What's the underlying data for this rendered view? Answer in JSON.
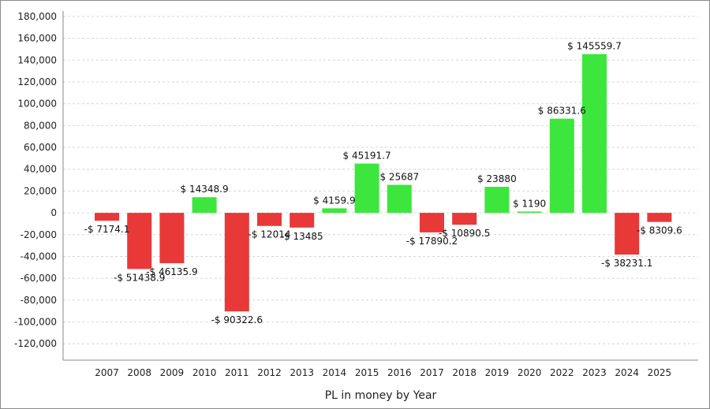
{
  "chart_data": {
    "type": "bar",
    "title": "",
    "xlabel": "PL in money by Year",
    "ylabel": "",
    "ylim": [
      -135000,
      185000
    ],
    "y_ticks": [
      180000,
      160000,
      140000,
      120000,
      100000,
      80000,
      60000,
      40000,
      20000,
      0,
      -20000,
      -40000,
      -60000,
      -80000,
      -100000,
      -120000
    ],
    "y_tick_labels": [
      "180,000",
      "160,000",
      "140,000",
      "120,000",
      "100,000",
      "80,000",
      "60,000",
      "40,000",
      "20,000",
      "0",
      "-20,000",
      "-40,000",
      "-60,000",
      "-80,000",
      "-100,000",
      "-120,000"
    ],
    "grid": true,
    "legend": "none",
    "categories": [
      "2007",
      "2008",
      "2009",
      "2010",
      "2011",
      "2012",
      "2013",
      "2014",
      "2015",
      "2016",
      "2017",
      "2018",
      "2019",
      "2020",
      "2022",
      "2023",
      "2024",
      "2025"
    ],
    "values": [
      -7174.1,
      -51438.9,
      -46135.9,
      14348.9,
      -90322.6,
      -12014,
      -13485,
      4159.9,
      45191.7,
      25687,
      -17890.2,
      -10890.5,
      23880,
      1190,
      86331.6,
      145559.7,
      -38231.1,
      -8309.6
    ],
    "data_labels": [
      "-$ 7174.1",
      "-$ 51438.9",
      "-$ 46135.9",
      "$ 14348.9",
      "-$ 90322.6",
      "-$ 12014",
      "-$ 13485",
      "$ 4159.9",
      "$ 45191.7",
      "$ 25687",
      "-$ 17890.2",
      "-$ 10890.5",
      "$ 23880",
      "$ 1190",
      "$ 86331.6",
      "$ 145559.7",
      "-$ 38231.1",
      "-$ 8309.6"
    ],
    "colors": {
      "positive": "#3de63d",
      "negative": "#e83838"
    }
  }
}
